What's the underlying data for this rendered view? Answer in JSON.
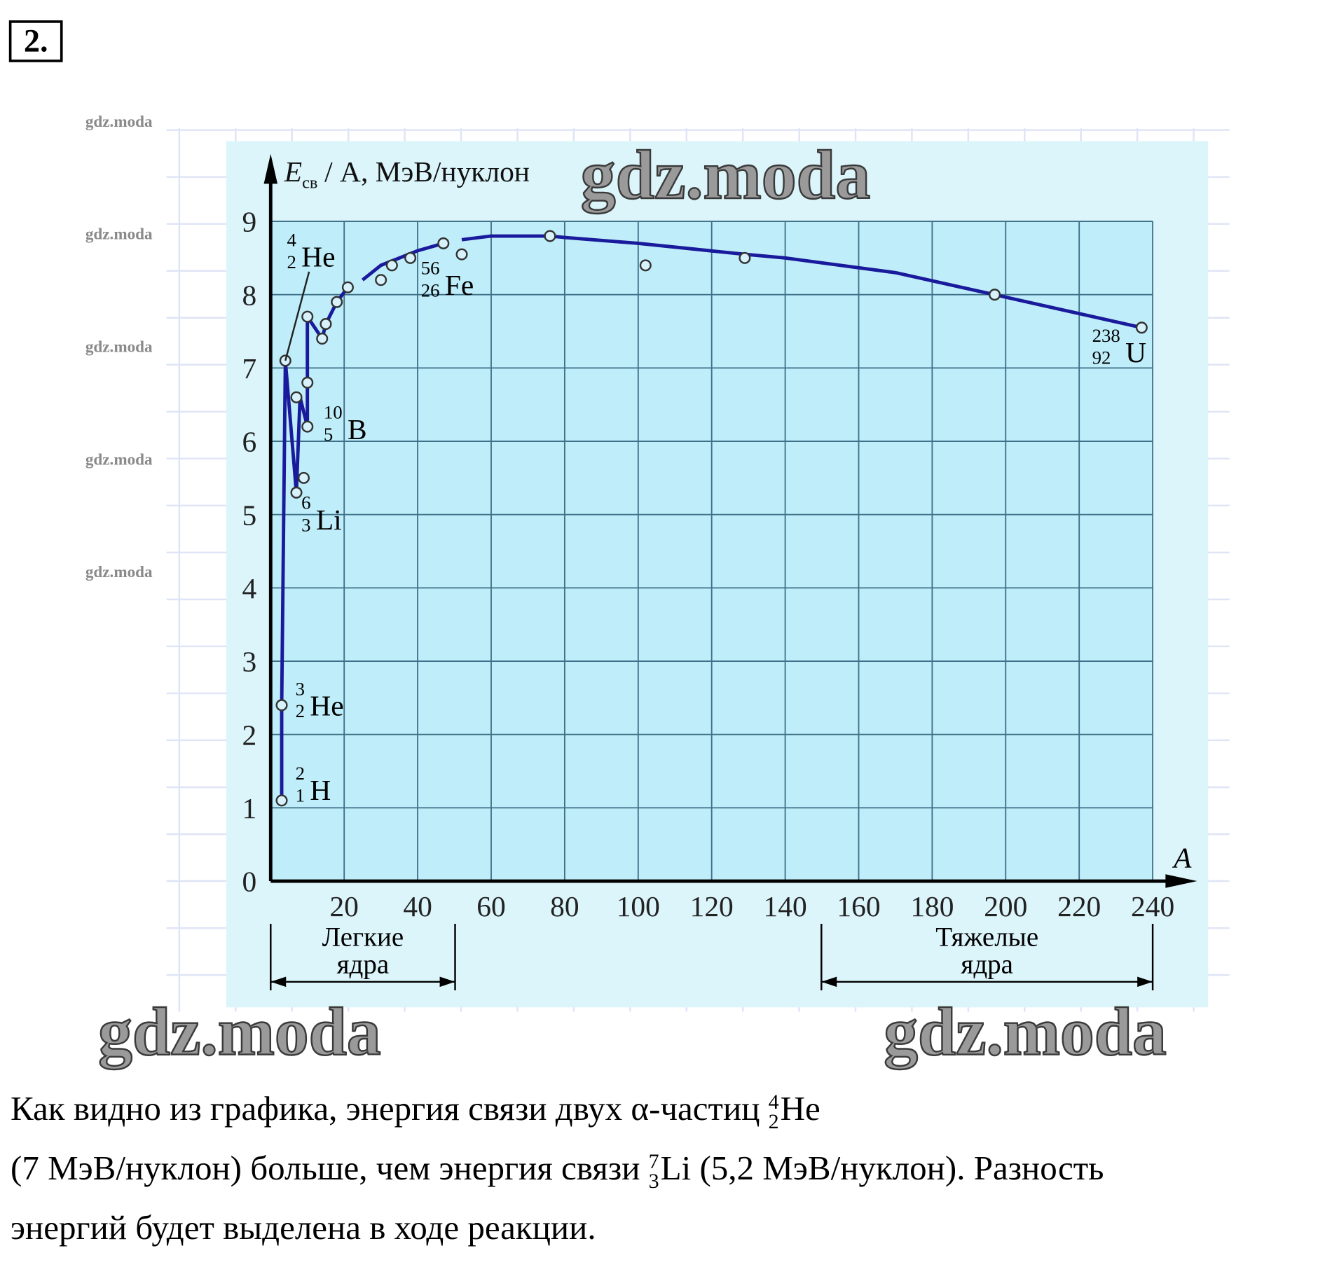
{
  "problem_number": "2.",
  "watermark": "gdz.moda",
  "chart_data": {
    "type": "line",
    "ylabel": {
      "symbol": "E",
      "subscript": "св",
      "units": "/ A, МэВ/нуклон"
    },
    "xlabel": "A",
    "xlim": [
      0,
      240
    ],
    "xticks": [
      20,
      40,
      60,
      80,
      100,
      120,
      140,
      160,
      180,
      200,
      220,
      240
    ],
    "ylim": [
      0,
      9
    ],
    "yticks": [
      0,
      1,
      2,
      3,
      4,
      5,
      6,
      7,
      8,
      9
    ],
    "grid": true,
    "series": [
      {
        "color": "#333333",
        "marker": "circle",
        "x": [
          3,
          3,
          4,
          7,
          9,
          7,
          10,
          10,
          10,
          14,
          15,
          18,
          21,
          30,
          33,
          38,
          47,
          52,
          76,
          102,
          129,
          197,
          237
        ],
        "values": [
          1.1,
          2.4,
          7.1,
          5.3,
          5.5,
          6.6,
          6.8,
          6.2,
          7.7,
          7.4,
          7.6,
          7.9,
          8.1,
          8.2,
          8.4,
          8.5,
          8.7,
          8.55,
          8.8,
          8.4,
          8.5,
          8.0,
          7.55
        ]
      },
      {
        "color": "#1a1a9c",
        "marker": "none",
        "x": [
          3,
          3,
          4,
          7,
          8,
          10,
          10,
          10,
          14,
          15,
          18,
          21,
          null,
          25,
          30,
          40,
          47,
          null,
          52,
          60,
          76,
          80,
          100,
          129,
          140,
          170,
          197,
          237
        ],
        "values": [
          1.1,
          2.4,
          7.1,
          5.3,
          6.6,
          6.2,
          6.8,
          7.7,
          7.4,
          7.6,
          7.9,
          8.1,
          null,
          8.2,
          8.4,
          8.6,
          8.7,
          null,
          8.75,
          8.8,
          8.8,
          8.78,
          8.7,
          8.55,
          8.5,
          8.3,
          8.0,
          7.55
        ]
      }
    ],
    "annotations": [
      {
        "mass": 4,
        "charge": 2,
        "symbol": "He"
      },
      {
        "mass": 56,
        "charge": 26,
        "symbol": "Fe"
      },
      {
        "mass": 238,
        "charge": 92,
        "symbol": "U"
      },
      {
        "mass": 10,
        "charge": 5,
        "symbol": "B"
      },
      {
        "mass": 6,
        "charge": 3,
        "symbol": "Li"
      },
      {
        "mass": 3,
        "charge": 2,
        "symbol": "He"
      },
      {
        "mass": 2,
        "charge": 1,
        "symbol": "H"
      }
    ],
    "regions": [
      {
        "line1": "Легкие",
        "line2": "ядра"
      },
      {
        "line1": "Тяжелые",
        "line2": "ядра"
      }
    ]
  },
  "text": {
    "part1": "Как видно из графика, энергия связи двух α-частиц ",
    "he_mass": 4,
    "he_charge": 2,
    "he_symbol": "He",
    "part2": "(7 МэВ/нуклон) больше, чем энергия связи ",
    "li_mass": 7,
    "li_charge": 3,
    "li_symbol": "Li",
    "part3": " (5,2 МэВ/нуклон). Разность",
    "part4": "энергий будет выделена в ходе реакции."
  }
}
